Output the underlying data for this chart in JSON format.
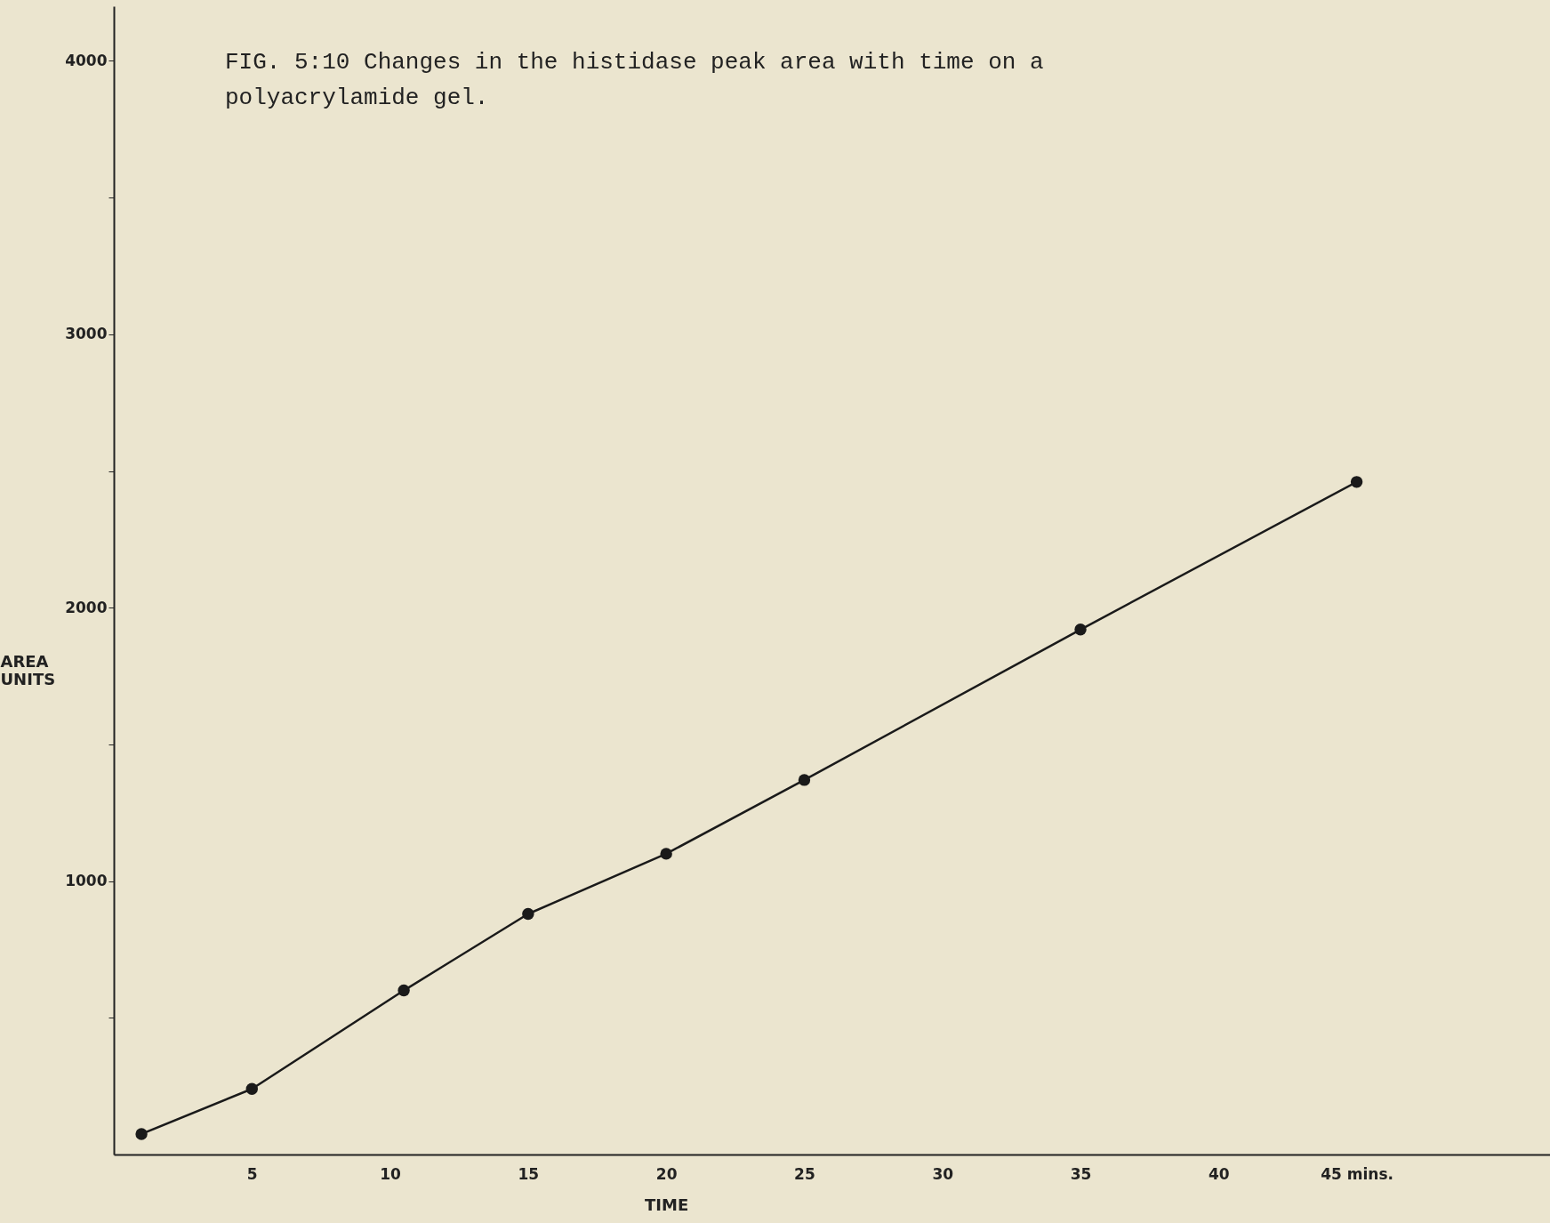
{
  "chart_data": {
    "type": "line",
    "title": "FIG. 5:10 Changes in the histidase peak area with time on a polyacrylamide gel.",
    "xlabel": "TIME",
    "ylabel": "AREA UNITS",
    "x": [
      1,
      5,
      10.5,
      15,
      20,
      25,
      35,
      45
    ],
    "series": [
      {
        "color": "#1a1a1a",
        "values": [
          75,
          240,
          600,
          880,
          1100,
          1370,
          1920,
          2460
        ]
      }
    ],
    "xlim": [
      0,
      52
    ],
    "xticks": [
      5,
      10,
      15,
      20,
      25,
      30,
      35,
      40,
      {
        "value": 45,
        "label": "45 mins."
      }
    ],
    "ylim": [
      0,
      4200
    ],
    "yticks": [
      {
        "value": 500,
        "label": null
      },
      1000,
      {
        "value": 1500,
        "label": null
      },
      2000,
      {
        "value": 2500,
        "label": null
      },
      3000,
      {
        "value": 3500,
        "label": null
      },
      4000
    ],
    "grid": false,
    "marker": "circle",
    "line_style": "solid"
  }
}
